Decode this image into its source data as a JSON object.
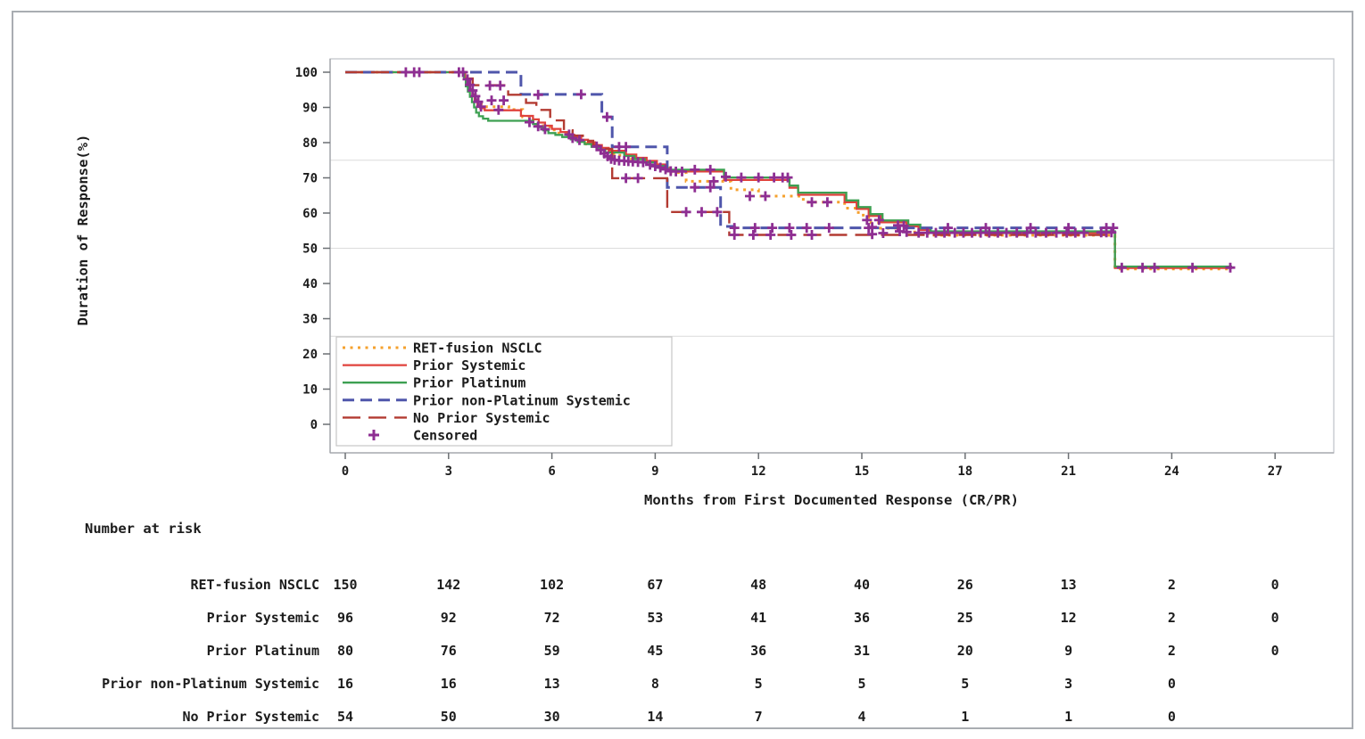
{
  "page": {
    "background": "#ffffff",
    "border_color": "#a9adb2"
  },
  "chart_data": {
    "type": "line",
    "subtype": "kaplan-meier-step",
    "title": "",
    "xlabel": "Months from First Documented Response (CR/PR)",
    "ylabel": "Duration of Response(%)",
    "x_axis": {
      "min": 0,
      "max": 27,
      "ticks": [
        0,
        3,
        6,
        9,
        12,
        15,
        18,
        21,
        24,
        27
      ]
    },
    "y_axis": {
      "min": 0,
      "max": 100,
      "ticks": [
        0,
        10,
        20,
        30,
        40,
        50,
        60,
        70,
        80,
        90,
        100
      ]
    },
    "reference_lines": [
      25,
      50,
      75
    ],
    "grid_color": "#dcdcdc",
    "frame_color": "#c3c7cb",
    "tick_color": "#6b6f73",
    "legend_position": "inside-bottom-left",
    "series": [
      {
        "name": "RET-fusion NSCLC",
        "color": "#F5A12E",
        "dash": "dot",
        "points": [
          [
            0,
            100
          ],
          [
            3.4,
            100
          ],
          [
            3.46,
            98.6
          ],
          [
            3.54,
            97.2
          ],
          [
            3.62,
            95.8
          ],
          [
            3.7,
            94.4
          ],
          [
            3.78,
            93
          ],
          [
            3.86,
            91.7
          ],
          [
            3.95,
            90.7
          ],
          [
            4.1,
            90.2
          ],
          [
            4.75,
            89.4
          ],
          [
            5.15,
            87.3
          ],
          [
            5.35,
            86.2
          ],
          [
            5.55,
            85.3
          ],
          [
            5.75,
            84.5
          ],
          [
            6,
            83.6
          ],
          [
            6.2,
            82.7
          ],
          [
            6.4,
            81.9
          ],
          [
            6.6,
            81.1
          ],
          [
            6.8,
            80.3
          ],
          [
            7,
            79.6
          ],
          [
            7.2,
            78.8
          ],
          [
            7.4,
            78
          ],
          [
            7.6,
            77.1
          ],
          [
            7.8,
            76.4
          ],
          [
            8.2,
            75.4
          ],
          [
            8.5,
            74.6
          ],
          [
            8.8,
            73.8
          ],
          [
            9.1,
            72.8
          ],
          [
            9.4,
            71.5
          ],
          [
            9.9,
            69
          ],
          [
            11.2,
            66.6
          ],
          [
            12,
            64.8
          ],
          [
            13.3,
            63.1
          ],
          [
            14.5,
            61.4
          ],
          [
            14.9,
            59.4
          ],
          [
            15.2,
            57.3
          ],
          [
            15.5,
            55.7
          ],
          [
            16.1,
            54.6
          ],
          [
            16.6,
            54.1
          ],
          [
            17.1,
            53.7
          ],
          [
            22.35,
            44.1
          ],
          [
            25.75,
            44.1
          ]
        ]
      },
      {
        "name": "Prior Systemic",
        "color": "#E0423C",
        "dash": "solid",
        "points": [
          [
            0,
            100
          ],
          [
            3.42,
            100
          ],
          [
            3.48,
            98.3
          ],
          [
            3.55,
            96.7
          ],
          [
            3.62,
            95.2
          ],
          [
            3.69,
            93.7
          ],
          [
            3.76,
            92.2
          ],
          [
            3.84,
            90.8
          ],
          [
            3.92,
            89.8
          ],
          [
            4.05,
            89.2
          ],
          [
            5.1,
            87.6
          ],
          [
            5.45,
            86.6
          ],
          [
            5.62,
            85.7
          ],
          [
            5.8,
            84.8
          ],
          [
            6,
            83.9
          ],
          [
            6.25,
            83
          ],
          [
            6.45,
            82.2
          ],
          [
            6.65,
            81.5
          ],
          [
            6.85,
            80.8
          ],
          [
            7.05,
            80.1
          ],
          [
            7.25,
            79.3
          ],
          [
            7.45,
            78.5
          ],
          [
            7.65,
            77.7
          ],
          [
            8.15,
            76.6
          ],
          [
            8.45,
            75.7
          ],
          [
            8.75,
            74.8
          ],
          [
            9.05,
            73.8
          ],
          [
            9.35,
            71.8
          ],
          [
            11,
            69.4
          ],
          [
            12.9,
            67.2
          ],
          [
            13.15,
            65.2
          ],
          [
            14.5,
            63.1
          ],
          [
            14.85,
            61.2
          ],
          [
            15.2,
            59.2
          ],
          [
            15.55,
            57.4
          ],
          [
            16.3,
            56.2
          ],
          [
            16.65,
            55.2
          ],
          [
            16.95,
            54.4
          ],
          [
            22.35,
            44.4
          ],
          [
            25.75,
            44.4
          ]
        ]
      },
      {
        "name": "Prior Platinum",
        "color": "#3DA052",
        "dash": "solid",
        "points": [
          [
            0,
            100
          ],
          [
            3.4,
            100
          ],
          [
            3.45,
            98
          ],
          [
            3.5,
            96
          ],
          [
            3.56,
            94.5
          ],
          [
            3.62,
            93
          ],
          [
            3.68,
            91.5
          ],
          [
            3.74,
            90
          ],
          [
            3.8,
            88.5
          ],
          [
            3.88,
            87.5
          ],
          [
            4,
            86.8
          ],
          [
            4.15,
            86.2
          ],
          [
            5.45,
            85.3
          ],
          [
            5.6,
            84.4
          ],
          [
            5.75,
            83.5
          ],
          [
            5.9,
            82.7
          ],
          [
            6.1,
            82.2
          ],
          [
            6.3,
            81.6
          ],
          [
            6.55,
            80.9
          ],
          [
            6.75,
            80.2
          ],
          [
            6.95,
            79.6
          ],
          [
            7.15,
            78.8
          ],
          [
            7.35,
            78
          ],
          [
            7.55,
            77.2
          ],
          [
            8.1,
            76.2
          ],
          [
            8.4,
            75.3
          ],
          [
            8.7,
            74.4
          ],
          [
            9,
            73.4
          ],
          [
            9.35,
            72.3
          ],
          [
            11,
            70.1
          ],
          [
            12.9,
            67.8
          ],
          [
            13.15,
            65.8
          ],
          [
            14.55,
            63.6
          ],
          [
            14.9,
            61.7
          ],
          [
            15.25,
            59.7
          ],
          [
            15.6,
            57.9
          ],
          [
            16.35,
            56.7
          ],
          [
            16.7,
            55.7
          ],
          [
            17,
            54.8
          ],
          [
            22.35,
            44.8
          ],
          [
            25.75,
            44.8
          ]
        ]
      },
      {
        "name": "Prior non-Platinum Systemic",
        "color": "#4F56AB",
        "dash": "dash",
        "points": [
          [
            0,
            100
          ],
          [
            5.1,
            93.7
          ],
          [
            7.45,
            87.3
          ],
          [
            7.75,
            78.8
          ],
          [
            9.35,
            67.3
          ],
          [
            10.9,
            56.2
          ],
          [
            11.3,
            55.8
          ],
          [
            22.35,
            55.8
          ]
        ]
      },
      {
        "name": "No Prior Systemic",
        "color": "#B33B32",
        "dash": "longdash",
        "points": [
          [
            0,
            100
          ],
          [
            3.6,
            98.2
          ],
          [
            3.7,
            96.3
          ],
          [
            4.73,
            93.6
          ],
          [
            5.25,
            91.3
          ],
          [
            5.55,
            89.3
          ],
          [
            5.95,
            86.3
          ],
          [
            6.35,
            83.5
          ],
          [
            6.6,
            82
          ],
          [
            6.9,
            80.5
          ],
          [
            7.2,
            79.2
          ],
          [
            7.45,
            78.2
          ],
          [
            7.75,
            69.9
          ],
          [
            9.35,
            60.3
          ],
          [
            11.15,
            53.8
          ],
          [
            22.3,
            53.8
          ]
        ]
      }
    ],
    "censored": {
      "label": "Censored",
      "color": "#8E2E92",
      "marks": [
        [
          1.76,
          100
        ],
        [
          2.0,
          100
        ],
        [
          2.15,
          100
        ],
        [
          3.3,
          100
        ],
        [
          3.42,
          100
        ],
        [
          3.55,
          98
        ],
        [
          3.62,
          96.4
        ],
        [
          3.7,
          94.8
        ],
        [
          3.78,
          93.2
        ],
        [
          3.86,
          91.6
        ],
        [
          3.94,
          90.2
        ],
        [
          4.2,
          96.2
        ],
        [
          4.5,
          96.2
        ],
        [
          4.25,
          92
        ],
        [
          4.6,
          92
        ],
        [
          4.45,
          89.3
        ],
        [
          5.6,
          93.6
        ],
        [
          6.85,
          93.7
        ],
        [
          7.6,
          87.3
        ],
        [
          5.35,
          85.8
        ],
        [
          5.6,
          84.6
        ],
        [
          5.8,
          83.8
        ],
        [
          6.5,
          82.3
        ],
        [
          6.6,
          81.3
        ],
        [
          6.8,
          80.7
        ],
        [
          7.3,
          78.9
        ],
        [
          7.42,
          77.9
        ],
        [
          7.52,
          76.9
        ],
        [
          7.62,
          76.1
        ],
        [
          7.72,
          75.4
        ],
        [
          7.82,
          75.1
        ],
        [
          7.95,
          74.9
        ],
        [
          8.1,
          74.8
        ],
        [
          8.22,
          74.7
        ],
        [
          8.35,
          74.6
        ],
        [
          8.5,
          74.5
        ],
        [
          8.65,
          74.4
        ],
        [
          7.95,
          78.8
        ],
        [
          8.15,
          78.8
        ],
        [
          8.15,
          69.9
        ],
        [
          8.5,
          69.9
        ],
        [
          8.85,
          73.7
        ],
        [
          9,
          73.3
        ],
        [
          9.15,
          72.9
        ],
        [
          9.3,
          72.4
        ],
        [
          9.45,
          71.9
        ],
        [
          9.6,
          71.8
        ],
        [
          9.78,
          71.8
        ],
        [
          9.9,
          60.3
        ],
        [
          10.35,
          60.3
        ],
        [
          10.8,
          60.3
        ],
        [
          10.15,
          67.3
        ],
        [
          10.6,
          67.3
        ],
        [
          10.7,
          69
        ],
        [
          10.15,
          72.3
        ],
        [
          10.6,
          72.3
        ],
        [
          11.05,
          70.3
        ],
        [
          11.5,
          70.1
        ],
        [
          12,
          70.1
        ],
        [
          12.45,
          70.1
        ],
        [
          12.7,
          70.1
        ],
        [
          12.85,
          70.1
        ],
        [
          11.75,
          64.8
        ],
        [
          12.2,
          64.8
        ],
        [
          13.55,
          63.1
        ],
        [
          14,
          63.1
        ],
        [
          11.3,
          55.8
        ],
        [
          11.9,
          55.8
        ],
        [
          12.4,
          55.8
        ],
        [
          12.9,
          55.8
        ],
        [
          13.4,
          55.8
        ],
        [
          14.05,
          55.8
        ],
        [
          15.2,
          55.8
        ],
        [
          11.3,
          53.8
        ],
        [
          11.85,
          53.8
        ],
        [
          12.35,
          53.8
        ],
        [
          12.95,
          53.8
        ],
        [
          13.55,
          53.8
        ],
        [
          15.15,
          58
        ],
        [
          15.3,
          56
        ],
        [
          15.3,
          54
        ],
        [
          15.5,
          58
        ],
        [
          15.62,
          54.3
        ],
        [
          16.05,
          56.5
        ],
        [
          16.1,
          54.8
        ],
        [
          16.22,
          56.4
        ],
        [
          16.3,
          54.6
        ],
        [
          16.65,
          54.4
        ],
        [
          16.9,
          54.4
        ],
        [
          17.15,
          54.4
        ],
        [
          17.4,
          54.4
        ],
        [
          17.7,
          54.4
        ],
        [
          17.95,
          54.4
        ],
        [
          18.2,
          54.4
        ],
        [
          18.45,
          54.4
        ],
        [
          18.7,
          54.4
        ],
        [
          18.95,
          54.4
        ],
        [
          19.2,
          54.4
        ],
        [
          19.5,
          54.4
        ],
        [
          19.8,
          54.4
        ],
        [
          20.05,
          54.4
        ],
        [
          20.35,
          54.4
        ],
        [
          20.65,
          54.4
        ],
        [
          20.95,
          54.4
        ],
        [
          21.2,
          54.4
        ],
        [
          21.45,
          54.4
        ],
        [
          17.5,
          55.8
        ],
        [
          18.6,
          55.8
        ],
        [
          19.9,
          55.8
        ],
        [
          21,
          55.8
        ],
        [
          21.95,
          54.5
        ],
        [
          22.1,
          54.5
        ],
        [
          22.25,
          54.5
        ],
        [
          22.1,
          55.8
        ],
        [
          22.3,
          55.8
        ],
        [
          22.55,
          44.5
        ],
        [
          23.15,
          44.5
        ],
        [
          23.5,
          44.5
        ],
        [
          24.6,
          44.5
        ],
        [
          25.7,
          44.5
        ]
      ]
    }
  },
  "number_at_risk": {
    "title": "Number at risk",
    "months": [
      0,
      3,
      6,
      9,
      12,
      15,
      18,
      21,
      24,
      27
    ],
    "rows": [
      {
        "label": "RET-fusion NSCLC",
        "values": [
          150,
          142,
          102,
          67,
          48,
          40,
          26,
          13,
          2,
          0
        ]
      },
      {
        "label": "Prior Systemic",
        "values": [
          96,
          92,
          72,
          53,
          41,
          36,
          25,
          12,
          2,
          0
        ]
      },
      {
        "label": "Prior Platinum",
        "values": [
          80,
          76,
          59,
          45,
          36,
          31,
          20,
          9,
          2,
          0
        ]
      },
      {
        "label": "Prior non-Platinum Systemic",
        "values": [
          16,
          16,
          13,
          8,
          5,
          5,
          5,
          3,
          0
        ]
      },
      {
        "label": "No Prior Systemic",
        "values": [
          54,
          50,
          30,
          14,
          7,
          4,
          1,
          1,
          0
        ]
      }
    ]
  }
}
